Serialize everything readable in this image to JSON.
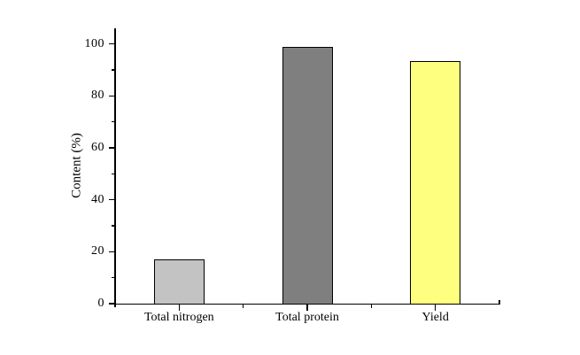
{
  "figure": {
    "background": "#ffffff",
    "text_color": "#000000",
    "axis_color": "#000000"
  },
  "chart_data": {
    "type": "bar",
    "title": "",
    "categories": [
      "Total nitrogen",
      "Total protein",
      "Yield"
    ],
    "values": [
      17.2,
      98.9,
      93.5
    ],
    "bar_fill_colors": [
      "#c3c3c3",
      "#7f7f7f",
      "#ffff7f"
    ],
    "bar_border_color": "#000000",
    "xlabel": "",
    "ylabel": "Content (%)",
    "ylim": [
      0,
      106
    ],
    "yticks_major": [
      0,
      20,
      40,
      60,
      80,
      100
    ],
    "yticks_minor": [
      10,
      30,
      50,
      70,
      90
    ],
    "grid": false,
    "legend_position": "none",
    "frame": "left-bottom-only"
  }
}
